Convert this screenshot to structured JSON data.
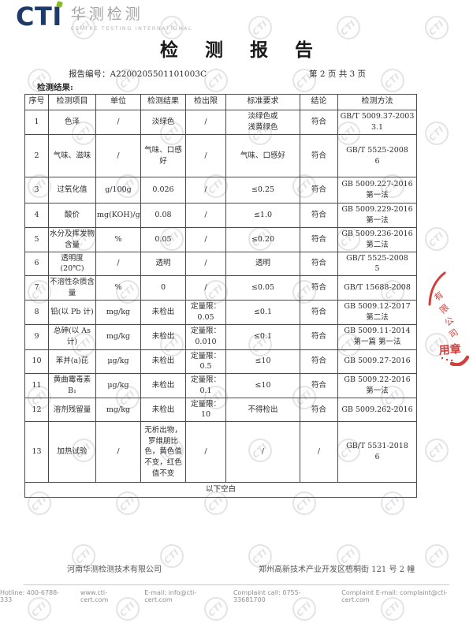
{
  "logo": {
    "abbr": "CTI",
    "cn": "华测检测",
    "en": "CENTRE TESTING INTERNATIONAL"
  },
  "title": "检 测 报 告",
  "report": {
    "no_line": "报告编号：A2200205501101003C",
    "page_info": "第 2 页 共 3 页",
    "section_label": "检测结果:"
  },
  "table": {
    "headers": [
      "序号",
      "检测项目",
      "单位",
      "检测结果",
      "检出限",
      "标准要求",
      "结论",
      "检测方法"
    ],
    "rows": [
      {
        "no": "1",
        "item": "色泽",
        "unit": "/",
        "result": "淡绿色",
        "limit": "/",
        "standard": "淡绿色或\n浅黄绿色",
        "conclusion": "符合",
        "method": "GB/T 5009.37-2003\n3.1"
      },
      {
        "no": "2",
        "item": "气味、滋味",
        "unit": "/",
        "result": "气味、口感好",
        "limit": "/",
        "standard": "气味、口感好",
        "conclusion": "符合",
        "method": "GB/T 5525-2008\n6"
      },
      {
        "no": "3",
        "item": "过氧化值",
        "unit": "g/100g",
        "result": "0.026",
        "limit": "/",
        "standard": "≤0.25",
        "conclusion": "符合",
        "method": "GB 5009.227-2016\n第一法"
      },
      {
        "no": "4",
        "item": "酸价",
        "unit": "mg(KOH)/g",
        "result": "0.08",
        "limit": "/",
        "standard": "≤1.0",
        "conclusion": "符合",
        "method": "GB 5009.229-2016\n第一法"
      },
      {
        "no": "5",
        "item": "水分及挥发物含量",
        "unit": "%",
        "result": "0.05",
        "limit": "/",
        "standard": "≤0.20",
        "conclusion": "符合",
        "method": "GB 5009.236-2016\n第二法"
      },
      {
        "no": "6",
        "item": "透明度\n(20℃)",
        "unit": "/",
        "result": "透明",
        "limit": "/",
        "standard": "透明",
        "conclusion": "符合",
        "method": "GB/T 5525-2008\n5"
      },
      {
        "no": "7",
        "item": "不溶性杂质含量",
        "unit": "%",
        "result": "0",
        "limit": "/",
        "standard": "≤0.05",
        "conclusion": "符合",
        "method": "GB/T 15688-2008"
      },
      {
        "no": "8",
        "item": "铅(以 Pb 计)",
        "unit": "mg/kg",
        "result": "未检出",
        "limit": "定量限：\n0.05",
        "standard": "≤0.1",
        "conclusion": "符合",
        "method": "GB 5009.12-2017\n第二法"
      },
      {
        "no": "9",
        "item": "总砷(以 As 计)",
        "unit": "mg/kg",
        "result": "未检出",
        "limit": "定量限：\n0.010",
        "standard": "≤0.1",
        "conclusion": "符合",
        "method": "GB 5009.11-2014\n第一篇 第一法"
      },
      {
        "no": "10",
        "item": "苯并(a)芘",
        "unit": "μg/kg",
        "result": "未检出",
        "limit": "定量限：\n0.5",
        "standard": "≤10",
        "conclusion": "符合",
        "method": "GB 5009.27-2016"
      },
      {
        "no": "11",
        "item": "黄曲霉毒素B₁",
        "unit": "μg/kg",
        "result": "未检出",
        "limit": "定量限：\n0.1",
        "standard": "≤10",
        "conclusion": "符合",
        "method": "GB 5009.22-2016\n第一法"
      },
      {
        "no": "12",
        "item": "溶剂残留量",
        "unit": "mg/kg",
        "result": "未检出",
        "limit": "定量限：\n10",
        "standard": "不得检出",
        "conclusion": "符合",
        "method": "GB 5009.262-2016"
      },
      {
        "no": "13",
        "item": "加热试验",
        "unit": "/",
        "result": "无析出物，罗维朋比色，黄色值不变，红色值不变",
        "limit": "/",
        "standard": "/",
        "conclusion": "/",
        "method": "GB/T 5531-2018\n6"
      }
    ],
    "blank_note": "以下空白"
  },
  "stamp": {
    "chars": [
      "有",
      "限",
      "公",
      "司"
    ],
    "label": "用章"
  },
  "watermark": "CTI",
  "footer": {
    "company": "河南华测检测技术有限公司",
    "address": "郑州高新技术产业开发区梧桐街 121 号 2 幢",
    "contacts": [
      "Hotline: 400-6788-333",
      "www.cti-cert.com",
      "E-mail: info@cti-cert.com",
      "Complaint call: 0755-33681700",
      "Complaint E-mail: complaint@cti-cert.com"
    ]
  },
  "colors": {
    "logo_navy": "#1d3a6b",
    "logo_green": "#85bb25",
    "stamp_red": "#cf312e",
    "watermark_gray": "#e3e3e7"
  }
}
